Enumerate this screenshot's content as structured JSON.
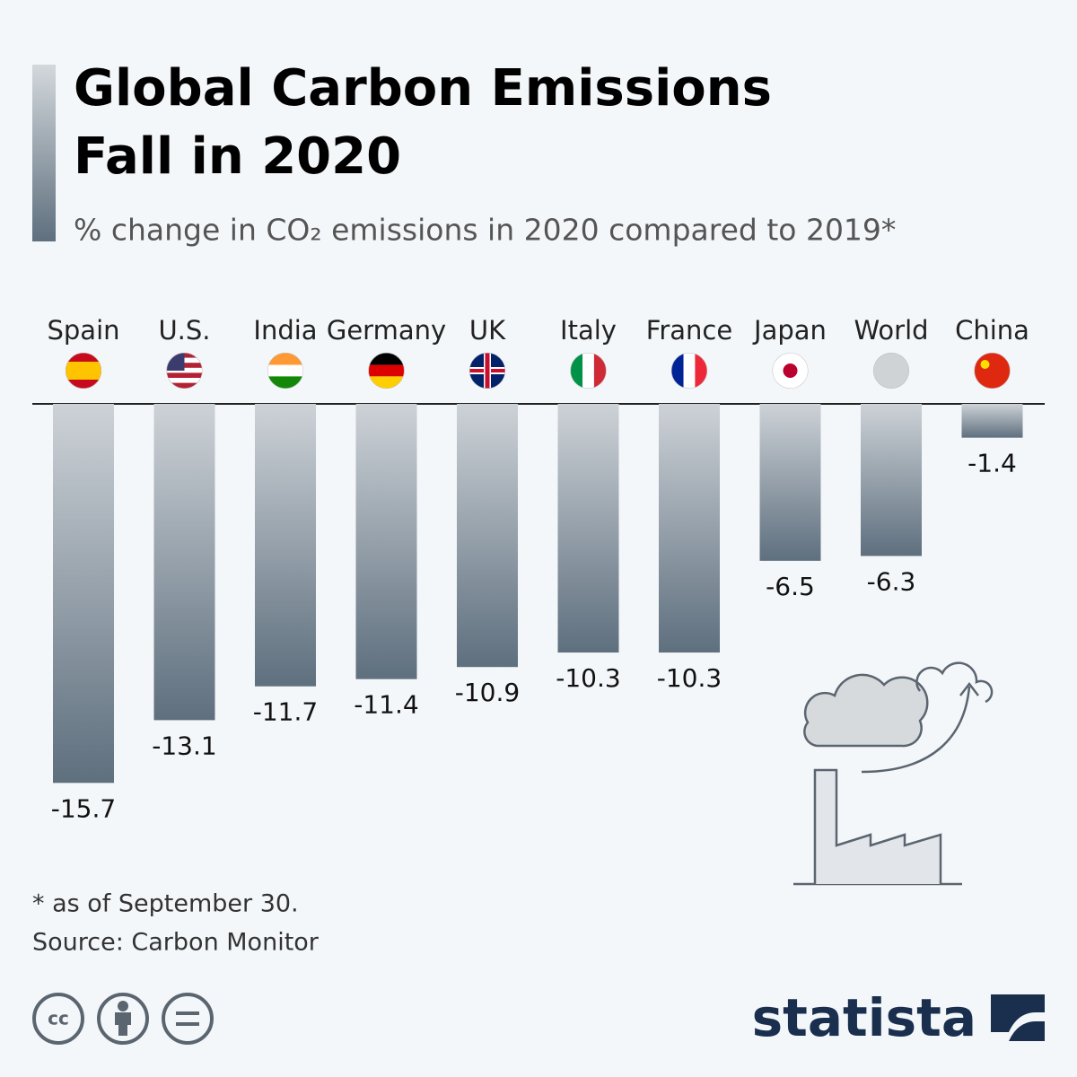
{
  "chart_data": {
    "type": "bar",
    "title_lines": [
      "Global Carbon Emissions",
      "Fall in 2020"
    ],
    "subtitle": "% change in CO₂ emissions in 2020 compared to 2019*",
    "categories": [
      "Spain",
      "U.S.",
      "India",
      "Germany",
      "UK",
      "Italy",
      "France",
      "Japan",
      "World",
      "China"
    ],
    "values": [
      -15.7,
      -13.1,
      -11.7,
      -11.4,
      -10.9,
      -10.3,
      -10.3,
      -6.5,
      -6.3,
      -1.4
    ],
    "gradient": [
      "#cdd2d7",
      "#5e6f7e"
    ],
    "footnote": "* as of September 30.",
    "source": "Source: Carbon Monitor",
    "brand": "statista"
  }
}
